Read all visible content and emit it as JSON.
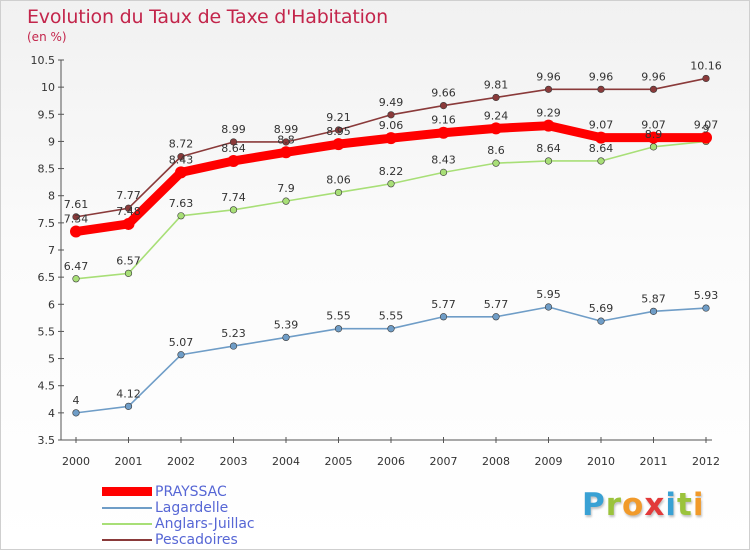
{
  "header": {
    "title": "Evolution du Taux de Taxe d'Habitation",
    "subtitle": "(en %)"
  },
  "logo": {
    "letters": [
      "P",
      "r",
      "o",
      "x",
      "i",
      "t",
      "i"
    ],
    "colors": [
      "#39a1d4",
      "#9bc33c",
      "#f19a2a",
      "#e23a3a",
      "#39a1d4",
      "#9bc33c",
      "#f19a2a"
    ]
  },
  "chart_data": {
    "type": "line",
    "title": "Evolution du Taux de Taxe d'Habitation",
    "subtitle": "(en %)",
    "xlabel": "",
    "ylabel": "",
    "x": [
      "2000",
      "2001",
      "2002",
      "2003",
      "2004",
      "2005",
      "2006",
      "2007",
      "2008",
      "2009",
      "2010",
      "2011",
      "2012"
    ],
    "ylim": [
      3.5,
      10.5
    ],
    "yticks": [
      "3.5",
      "4",
      "4.5",
      "5",
      "5.5",
      "6",
      "6.5",
      "7",
      "7.5",
      "8",
      "8.5",
      "9",
      "9.5",
      "10",
      "10.5"
    ],
    "grid": false,
    "legend_position": "bottom-left",
    "series": [
      {
        "name": "PRAYSSAC",
        "color": "#ff0000",
        "values": [
          7.34,
          7.48,
          8.43,
          8.64,
          8.8,
          8.95,
          9.06,
          9.16,
          9.24,
          9.29,
          9.07,
          9.07,
          9.07
        ],
        "labels": [
          "7.34",
          "7.48",
          "8.43",
          "8.64",
          "8.8",
          "8.95",
          "9.06",
          "9.16",
          "9.24",
          "9.29",
          "9.07",
          "9.07",
          "9.07"
        ]
      },
      {
        "name": "Lagardelle",
        "color": "#6f9dc7",
        "values": [
          4.0,
          4.12,
          5.07,
          5.23,
          5.39,
          5.55,
          5.55,
          5.77,
          5.77,
          5.95,
          5.69,
          5.87,
          5.93
        ],
        "labels": [
          "4",
          "4.12",
          "5.07",
          "5.23",
          "5.39",
          "5.55",
          "5.55",
          "5.77",
          "5.77",
          "5.95",
          "5.69",
          "5.87",
          "5.93"
        ]
      },
      {
        "name": "Anglars-Juillac",
        "color": "#a8df77",
        "values": [
          6.47,
          6.57,
          7.63,
          7.74,
          7.9,
          8.06,
          8.22,
          8.43,
          8.6,
          8.64,
          8.64,
          8.9,
          9.0
        ],
        "labels": [
          "6.47",
          "6.57",
          "7.63",
          "7.74",
          "7.9",
          "8.06",
          "8.22",
          "8.43",
          "8.6",
          "8.64",
          "8.64",
          "8.9",
          "9"
        ]
      },
      {
        "name": "Pescadoires",
        "color": "#8a3a3a",
        "values": [
          7.61,
          7.77,
          8.72,
          8.99,
          8.99,
          9.21,
          9.49,
          9.66,
          9.81,
          9.96,
          9.96,
          9.96,
          10.16
        ],
        "labels": [
          "7.61",
          "7.77",
          "8.72",
          "8.99",
          "8.99",
          "9.21",
          "9.49",
          "9.66",
          "9.81",
          "9.96",
          "9.96",
          "9.96",
          "10.16"
        ]
      }
    ]
  }
}
